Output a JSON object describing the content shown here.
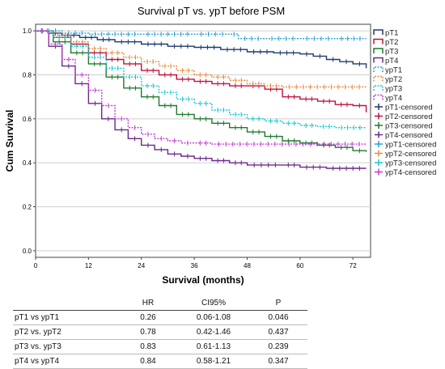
{
  "chart_data": {
    "type": "line",
    "title": "Survival pT vs. ypT before PSM",
    "xlabel": "Survival (months)",
    "ylabel": "Cum Survival",
    "xlim": [
      0,
      76
    ],
    "ylim": [
      -0.03,
      1.03
    ],
    "x_ticks": [
      0,
      12,
      24,
      36,
      48,
      60,
      72
    ],
    "y_ticks": [
      0.0,
      0.2,
      0.4,
      0.6,
      0.8,
      1.0
    ],
    "y_tick_labels": [
      "0.0",
      "0.2",
      "0.4",
      "0.6",
      "0.8",
      "1.0"
    ],
    "grid": true,
    "legend_position": "right",
    "series": [
      {
        "name": "pT1",
        "color": "#1f3a6e",
        "dashed": false,
        "points": [
          [
            0,
            1.0
          ],
          [
            3,
            0.99
          ],
          [
            6,
            0.98
          ],
          [
            10,
            0.97
          ],
          [
            14,
            0.96
          ],
          [
            18,
            0.95
          ],
          [
            24,
            0.94
          ],
          [
            30,
            0.93
          ],
          [
            36,
            0.925
          ],
          [
            42,
            0.915
          ],
          [
            48,
            0.905
          ],
          [
            54,
            0.9
          ],
          [
            60,
            0.895
          ],
          [
            63,
            0.885
          ],
          [
            66,
            0.87
          ],
          [
            69,
            0.86
          ],
          [
            72,
            0.85
          ],
          [
            75,
            0.83
          ]
        ]
      },
      {
        "name": "pT2",
        "color": "#c0123c",
        "dashed": false,
        "points": [
          [
            0,
            1.0
          ],
          [
            4,
            0.97
          ],
          [
            8,
            0.94
          ],
          [
            12,
            0.9
          ],
          [
            16,
            0.87
          ],
          [
            20,
            0.85
          ],
          [
            24,
            0.82
          ],
          [
            28,
            0.8
          ],
          [
            32,
            0.78
          ],
          [
            36,
            0.77
          ],
          [
            40,
            0.76
          ],
          [
            44,
            0.75
          ],
          [
            48,
            0.75
          ],
          [
            52,
            0.735
          ],
          [
            56,
            0.7
          ],
          [
            60,
            0.69
          ],
          [
            64,
            0.68
          ],
          [
            68,
            0.665
          ],
          [
            72,
            0.66
          ],
          [
            75,
            0.63
          ]
        ]
      },
      {
        "name": "pT3",
        "color": "#1f7a2e",
        "dashed": false,
        "points": [
          [
            0,
            1.0
          ],
          [
            4,
            0.95
          ],
          [
            8,
            0.9
          ],
          [
            12,
            0.85
          ],
          [
            16,
            0.79
          ],
          [
            20,
            0.74
          ],
          [
            24,
            0.7
          ],
          [
            28,
            0.66
          ],
          [
            32,
            0.62
          ],
          [
            36,
            0.6
          ],
          [
            40,
            0.58
          ],
          [
            44,
            0.56
          ],
          [
            48,
            0.54
          ],
          [
            52,
            0.52
          ],
          [
            56,
            0.5
          ],
          [
            60,
            0.49
          ],
          [
            64,
            0.48
          ],
          [
            68,
            0.47
          ],
          [
            72,
            0.455
          ],
          [
            75,
            0.45
          ]
        ]
      },
      {
        "name": "pT4",
        "color": "#6a2a8a",
        "dashed": false,
        "points": [
          [
            0,
            1.0
          ],
          [
            3,
            0.93
          ],
          [
            6,
            0.84
          ],
          [
            9,
            0.76
          ],
          [
            12,
            0.67
          ],
          [
            15,
            0.6
          ],
          [
            18,
            0.55
          ],
          [
            21,
            0.51
          ],
          [
            24,
            0.48
          ],
          [
            27,
            0.46
          ],
          [
            30,
            0.44
          ],
          [
            33,
            0.43
          ],
          [
            36,
            0.42
          ],
          [
            40,
            0.41
          ],
          [
            44,
            0.4
          ],
          [
            48,
            0.39
          ],
          [
            56,
            0.39
          ],
          [
            60,
            0.38
          ],
          [
            66,
            0.375
          ],
          [
            75,
            0.375
          ]
        ]
      },
      {
        "name": "ypT1",
        "color": "#2b9fd6",
        "dashed": true,
        "points": [
          [
            0,
            1.0
          ],
          [
            6,
            0.99
          ],
          [
            12,
            0.985
          ],
          [
            24,
            0.985
          ],
          [
            36,
            0.985
          ],
          [
            44,
            0.985
          ],
          [
            46,
            0.965
          ],
          [
            52,
            0.965
          ],
          [
            60,
            0.965
          ],
          [
            68,
            0.965
          ],
          [
            75,
            0.965
          ]
        ]
      },
      {
        "name": "ypT2",
        "color": "#e98a3c",
        "dashed": true,
        "points": [
          [
            0,
            1.0
          ],
          [
            4,
            0.98
          ],
          [
            8,
            0.95
          ],
          [
            12,
            0.92
          ],
          [
            16,
            0.9
          ],
          [
            20,
            0.88
          ],
          [
            24,
            0.86
          ],
          [
            28,
            0.84
          ],
          [
            32,
            0.82
          ],
          [
            36,
            0.8
          ],
          [
            40,
            0.79
          ],
          [
            44,
            0.775
          ],
          [
            48,
            0.76
          ],
          [
            52,
            0.75
          ],
          [
            56,
            0.745
          ],
          [
            75,
            0.745
          ]
        ]
      },
      {
        "name": "ypT3",
        "color": "#13c8cf",
        "dashed": true,
        "points": [
          [
            0,
            1.0
          ],
          [
            4,
            0.97
          ],
          [
            8,
            0.93
          ],
          [
            12,
            0.88
          ],
          [
            16,
            0.83
          ],
          [
            20,
            0.79
          ],
          [
            24,
            0.75
          ],
          [
            28,
            0.72
          ],
          [
            32,
            0.69
          ],
          [
            36,
            0.67
          ],
          [
            40,
            0.64
          ],
          [
            44,
            0.62
          ],
          [
            48,
            0.6
          ],
          [
            52,
            0.59
          ],
          [
            56,
            0.58
          ],
          [
            60,
            0.57
          ],
          [
            64,
            0.565
          ],
          [
            68,
            0.56
          ],
          [
            75,
            0.56
          ]
        ]
      },
      {
        "name": "ypT4",
        "color": "#c33cd6",
        "dashed": true,
        "points": [
          [
            0,
            1.0
          ],
          [
            3,
            0.94
          ],
          [
            6,
            0.87
          ],
          [
            9,
            0.8
          ],
          [
            12,
            0.73
          ],
          [
            15,
            0.66
          ],
          [
            18,
            0.6
          ],
          [
            21,
            0.56
          ],
          [
            24,
            0.53
          ],
          [
            27,
            0.51
          ],
          [
            30,
            0.5
          ],
          [
            33,
            0.49
          ],
          [
            36,
            0.49
          ],
          [
            40,
            0.485
          ],
          [
            75,
            0.485
          ]
        ]
      }
    ],
    "censored_legend": [
      "pT1-censored",
      "pT2-censored",
      "pT3-censored",
      "pT4-censored",
      "ypT1-censored",
      "ypT2-censored",
      "ypT3-censored",
      "ypT4-censored"
    ]
  },
  "table": {
    "headers": [
      "",
      "HR",
      "CI95%",
      "P"
    ],
    "rows": [
      [
        "pT1 vs ypT1",
        "0.26",
        "0.06-1.08",
        "0.046"
      ],
      [
        "pT2 vs. ypT2",
        "0.78",
        "0.42-1.46",
        "0.437"
      ],
      [
        "pT3 vs. ypT3",
        "0.83",
        "0.61-1.13",
        "0.239"
      ],
      [
        "pT4 vs ypT4",
        "0.84",
        "0.58-1.21",
        "0.347"
      ]
    ]
  }
}
